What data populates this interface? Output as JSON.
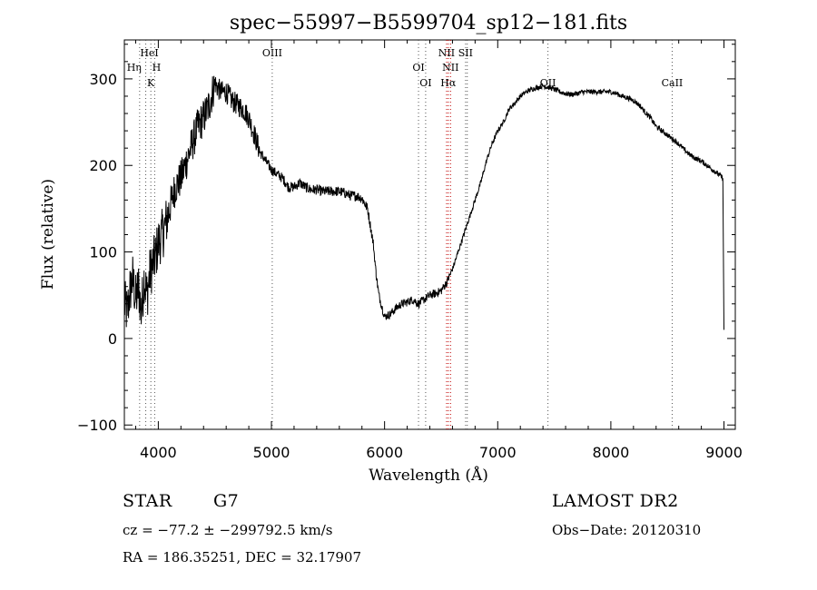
{
  "chart_data": {
    "type": "line",
    "title": "spec−55997−B5599704_sp12−181.fits",
    "xlabel": "Wavelength (Å)",
    "ylabel": "Flux (relative)",
    "xlim": [
      3700,
      9100
    ],
    "ylim": [
      -105,
      345
    ],
    "xticks": [
      4000,
      5000,
      6000,
      7000,
      8000,
      9000
    ],
    "yticks": [
      -100,
      0,
      100,
      200,
      300
    ],
    "grid": false,
    "series": [
      {
        "x": [
          3700,
          3725,
          3750,
          3775,
          3800,
          3825,
          3850,
          3875,
          3900,
          3925,
          3950,
          3975,
          4000,
          4050,
          4100,
          4150,
          4200,
          4250,
          4300,
          4350,
          4400,
          4450,
          4500,
          4550,
          4600,
          4650,
          4700,
          4750,
          4800,
          4850,
          4900,
          4950,
          5000,
          5050,
          5100,
          5150,
          5200,
          5250,
          5300,
          5350,
          5400,
          5450,
          5500,
          5550,
          5600,
          5650,
          5700,
          5750,
          5800,
          5850,
          5900,
          5925,
          5950,
          6000,
          6050,
          6100,
          6150,
          6200,
          6250,
          6300,
          6350,
          6400,
          6450,
          6500,
          6550,
          6600,
          6650,
          6700,
          6750,
          6800,
          6850,
          6900,
          6950,
          7000,
          7050,
          7100,
          7150,
          7200,
          7250,
          7300,
          7350,
          7400,
          7450,
          7500,
          7550,
          7600,
          7650,
          7700,
          7750,
          7800,
          7850,
          7900,
          7950,
          8000,
          8050,
          8100,
          8150,
          8200,
          8250,
          8300,
          8350,
          8400,
          8450,
          8500,
          8550,
          8600,
          8650,
          8700,
          8750,
          8800,
          8850,
          8900,
          8950,
          8990,
          9000
        ],
        "y": [
          40,
          30,
          55,
          70,
          45,
          60,
          30,
          70,
          50,
          75,
          85,
          95,
          110,
          125,
          150,
          175,
          185,
          205,
          225,
          245,
          255,
          270,
          295,
          285,
          285,
          275,
          270,
          265,
          255,
          235,
          215,
          205,
          195,
          190,
          185,
          175,
          175,
          180,
          175,
          172,
          172,
          170,
          170,
          170,
          170,
          168,
          165,
          165,
          162,
          150,
          110,
          75,
          50,
          25,
          28,
          35,
          40,
          42,
          45,
          40,
          45,
          50,
          52,
          55,
          65,
          80,
          100,
          120,
          140,
          160,
          180,
          205,
          225,
          240,
          250,
          265,
          272,
          280,
          285,
          288,
          290,
          292,
          290,
          288,
          285,
          283,
          282,
          283,
          285,
          285,
          285,
          285,
          285,
          285,
          283,
          280,
          278,
          275,
          270,
          262,
          255,
          245,
          240,
          235,
          230,
          225,
          218,
          212,
          208,
          205,
          200,
          195,
          190,
          185,
          10
        ]
      }
    ],
    "lines": [
      {
        "x": 3835,
        "label": "Hη"
      },
      {
        "x": 3889,
        "label": "HeI"
      },
      {
        "x": 3934,
        "label": "K"
      },
      {
        "x": 3968,
        "label": "H"
      },
      {
        "x": 5007,
        "label": "OIII"
      },
      {
        "x": 6300,
        "label": "OI"
      },
      {
        "x": 6363,
        "label": "OI"
      },
      {
        "x": 6548,
        "label": "NII"
      },
      {
        "x": 6563,
        "label": "Hα"
      },
      {
        "x": 6583,
        "label": "NII"
      },
      {
        "x": 6716,
        "label": "SII"
      },
      {
        "x": 6731,
        "label": "SII"
      },
      {
        "x": 7444,
        "label": "OII"
      },
      {
        "x": 8542,
        "label": "CaII"
      }
    ]
  },
  "info": {
    "object_type": "STAR",
    "subclass": "G7",
    "survey": "LAMOST DR2",
    "redshift_line": "cz = −77.2 ± −299792.5 km/s",
    "obs_date_line": "Obs−Date: 20120310",
    "coords_line": "RA = 186.35251, DEC =  32.17907"
  }
}
